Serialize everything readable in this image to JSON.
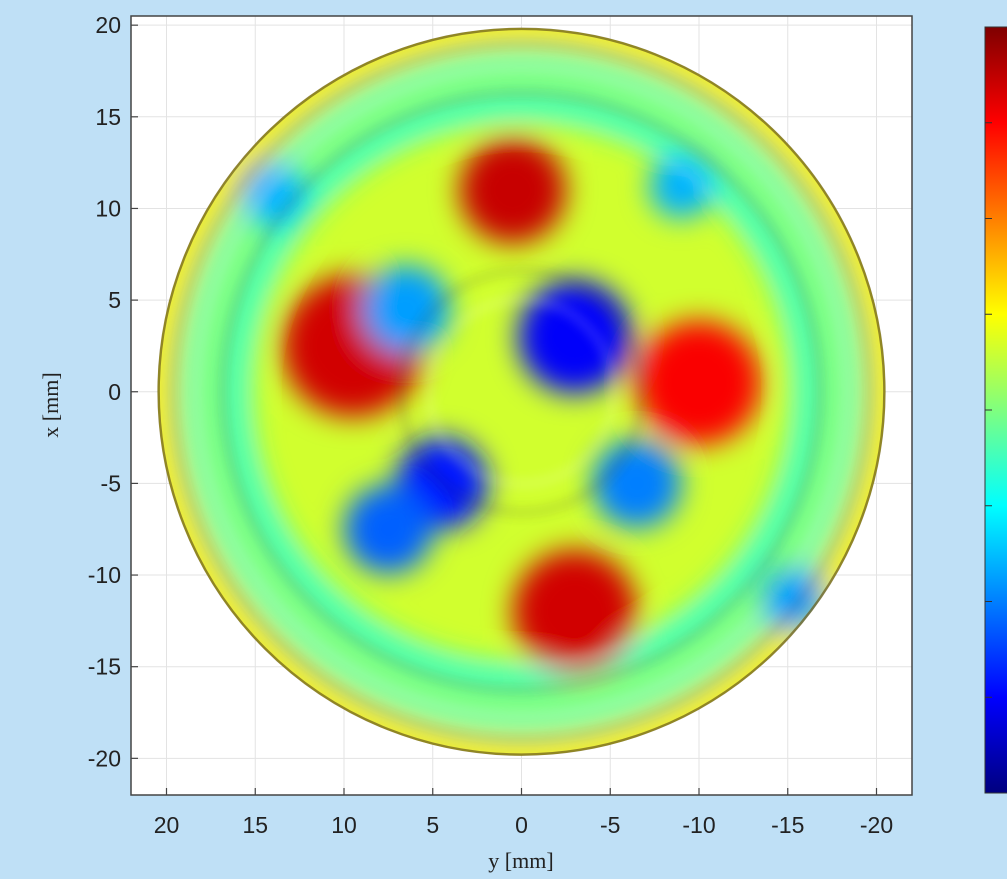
{
  "chart_data": {
    "type": "heatmap",
    "title": "",
    "xlabel": "y [mm]",
    "ylabel": "x [mm]",
    "xlim": [
      22,
      -22
    ],
    "ylim": [
      -22,
      20.5
    ],
    "x_ticks": [
      20,
      15,
      10,
      5,
      0,
      -5,
      -10,
      -15,
      -20
    ],
    "x_tick_labels": [
      "20",
      "15",
      "10",
      "5",
      "0",
      "-5",
      "-10",
      "-15",
      "-20"
    ],
    "y_ticks": [
      20,
      15,
      10,
      5,
      0,
      -5,
      -10,
      -15,
      -20
    ],
    "y_tick_labels": [
      "20",
      "15",
      "10",
      "5",
      "0",
      "-5",
      "-10",
      "-15",
      "-20"
    ],
    "grid": true,
    "colormap": "jet",
    "colormap_stops": [
      "#00007f",
      "#0000ff",
      "#007fff",
      "#00ffff",
      "#7fff7f",
      "#ffff00",
      "#ff7f00",
      "#ff0000",
      "#7f0000"
    ],
    "disk_radius": 20.5,
    "regions": [
      {
        "feature": "outer-rim",
        "center": [
          0,
          0
        ],
        "radius": 20.2,
        "level": 0.65
      },
      {
        "feature": "outer-groove",
        "center": [
          0,
          0
        ],
        "radius": 18.6,
        "level": 0.45
      },
      {
        "feature": "cyan-ring",
        "center": [
          0,
          0
        ],
        "radius": 16.2,
        "level": 0.42
      },
      {
        "feature": "red-arc-left",
        "center": [
          9.5,
          2.5
        ],
        "radius": 4.0,
        "level": 0.92
      },
      {
        "feature": "red-arc-top",
        "center": [
          0.5,
          11.0
        ],
        "radius": 3.0,
        "level": 0.93
      },
      {
        "feature": "red-arc-bottom",
        "center": [
          -3.0,
          -12.0
        ],
        "radius": 3.5,
        "level": 0.92
      },
      {
        "feature": "red-arc-right",
        "center": [
          -10.0,
          0.5
        ],
        "radius": 3.5,
        "level": 0.88
      },
      {
        "feature": "center-blue",
        "center": [
          -3.0,
          3.0
        ],
        "radius": 3.2,
        "level": 0.12
      },
      {
        "feature": "blue-pad-upper-left",
        "center": [
          6.5,
          4.5
        ],
        "radius": 2.5,
        "level": 0.28
      },
      {
        "feature": "blue-pad-lower-left",
        "center": [
          4.5,
          -5.0
        ],
        "radius": 2.6,
        "level": 0.15
      },
      {
        "feature": "blue-pad-lower-left-2",
        "center": [
          7.5,
          -7.5
        ],
        "radius": 2.5,
        "level": 0.22
      },
      {
        "feature": "blue-pad-lower-right",
        "center": [
          -6.5,
          -5.0
        ],
        "radius": 2.5,
        "level": 0.25
      },
      {
        "feature": "notch-upper-left",
        "center": [
          14.0,
          10.8
        ],
        "radius": 1.8,
        "level": 0.3
      },
      {
        "feature": "notch-upper-right",
        "center": [
          -9.0,
          11.2
        ],
        "radius": 1.8,
        "level": 0.3
      },
      {
        "feature": "notch-lower-right",
        "center": [
          -15.3,
          -11.3
        ],
        "radius": 1.8,
        "level": 0.28
      }
    ]
  }
}
